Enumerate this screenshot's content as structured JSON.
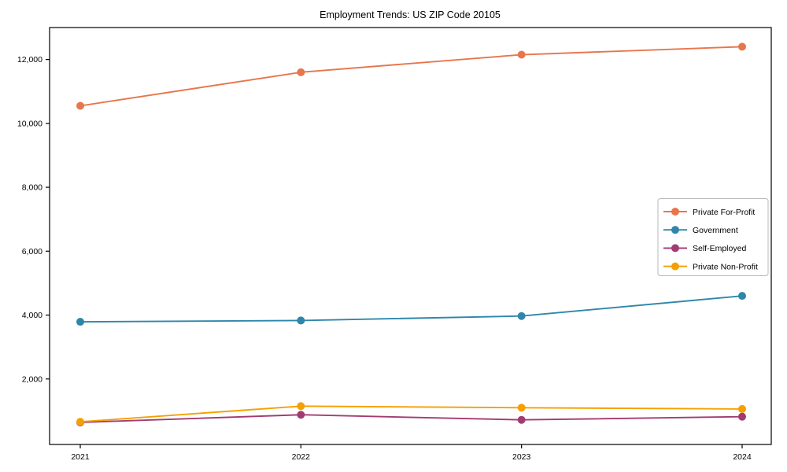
{
  "title": "Employment Trends: US ZIP Code 20105",
  "chart_data": {
    "type": "line",
    "x": [
      "2021",
      "2022",
      "2023",
      "2024"
    ],
    "series": [
      {
        "name": "Private For-Profit",
        "color": "#E8764B",
        "values": [
          10550,
          11600,
          12150,
          12400
        ]
      },
      {
        "name": "Government",
        "color": "#2E86AB",
        "values": [
          3790,
          3830,
          3970,
          4600
        ]
      },
      {
        "name": "Self-Employed",
        "color": "#A23B72",
        "values": [
          640,
          880,
          720,
          820
        ]
      },
      {
        "name": "Private Non-Profit",
        "color": "#F5A002",
        "values": [
          660,
          1150,
          1100,
          1060
        ]
      }
    ],
    "ylim": [
      -50,
      13000
    ],
    "yticks": [
      2000,
      4000,
      6000,
      8000,
      10000,
      12000
    ],
    "ytick_labels": [
      "2,000",
      "4,000",
      "6,000",
      "8,000",
      "10,000",
      "12,000"
    ],
    "grid": false,
    "legend_position": "center-right",
    "axis_color": "#000000",
    "background_color": "#ffffff"
  }
}
